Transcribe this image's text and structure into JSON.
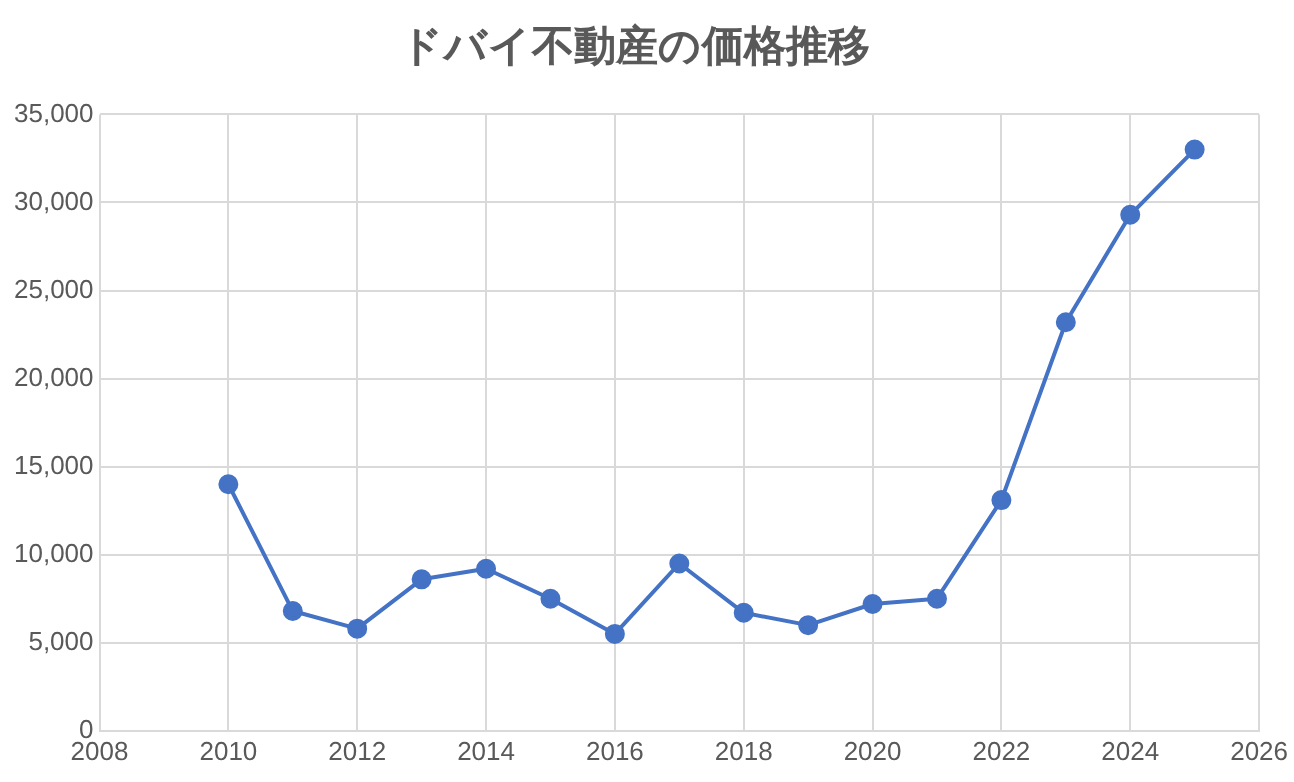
{
  "chart_data": {
    "type": "line",
    "title": "ドバイ不動産の価格推移",
    "x": [
      2010,
      2011,
      2012,
      2013,
      2014,
      2015,
      2016,
      2017,
      2018,
      2019,
      2020,
      2021,
      2022,
      2023,
      2024,
      2025
    ],
    "series": [
      {
        "color": "#4472c4",
        "values": [
          14000,
          6800,
          5800,
          8600,
          9200,
          7500,
          5500,
          9500,
          6700,
          6000,
          7200,
          7500,
          13100,
          23200,
          29300,
          33000
        ]
      }
    ],
    "xlim": [
      2008,
      2026
    ],
    "xticks": [
      2008,
      2010,
      2012,
      2014,
      2016,
      2018,
      2020,
      2022,
      2024,
      2026
    ],
    "ylim": [
      0,
      35000
    ],
    "yticks": [
      {
        "value": 0,
        "label": "0"
      },
      {
        "value": 5000,
        "label": "5,000"
      },
      {
        "value": 10000,
        "label": "10,000"
      },
      {
        "value": 15000,
        "label": "15,000"
      },
      {
        "value": 20000,
        "label": "20,000"
      },
      {
        "value": 25000,
        "label": "25,000"
      },
      {
        "value": 30000,
        "label": "30,000"
      },
      {
        "value": 35000,
        "label": "35,000"
      }
    ],
    "grid": true,
    "legend": false,
    "marker": "circle",
    "line_style": "solid"
  }
}
